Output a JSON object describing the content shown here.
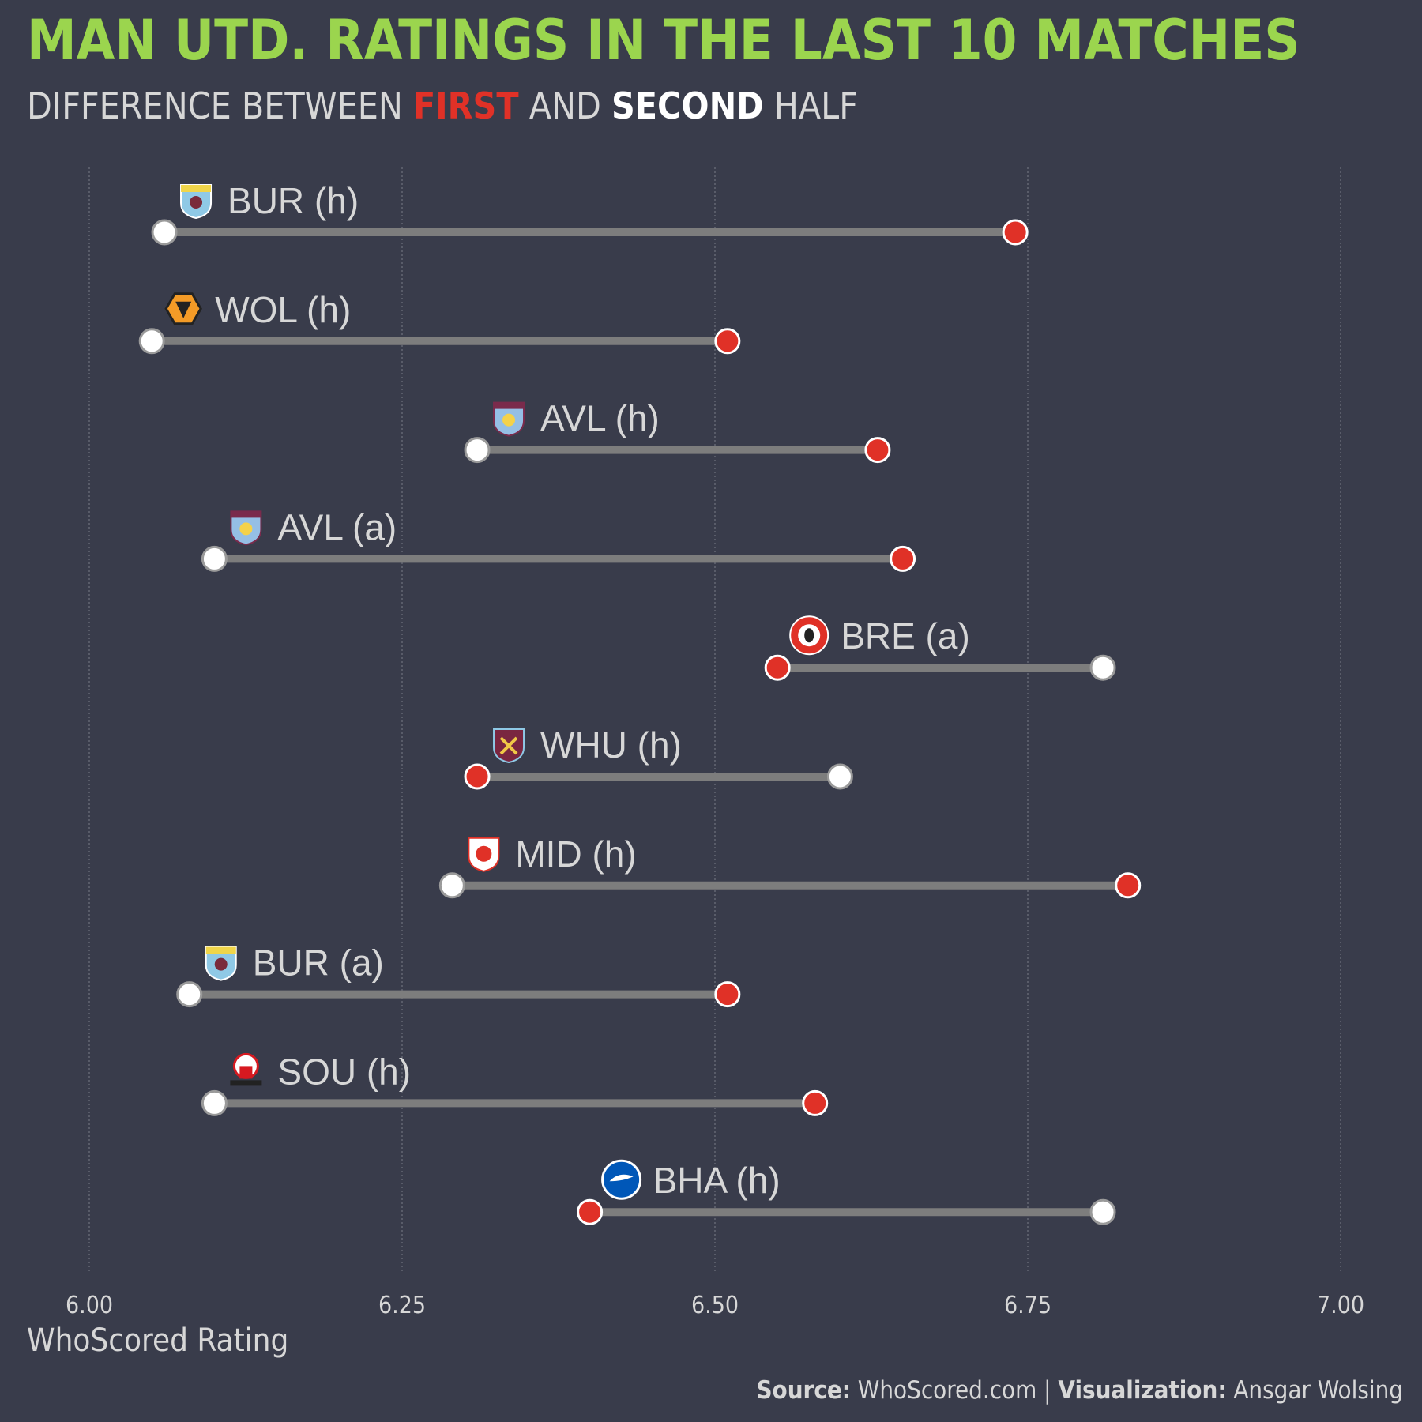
{
  "title": "MAN UTD. RATINGS IN THE LAST 10 MATCHES",
  "subtitle": {
    "part1": "DIFFERENCE BETWEEN ",
    "first": "FIRST",
    "part2": " AND ",
    "second": "SECOND",
    "part3": " HALF"
  },
  "colors": {
    "background": "#393c4b",
    "title": "#9bd54e",
    "first_half": "#e03127",
    "second_half": "#ffffff",
    "connector": "#7d7d7d",
    "text": "#d7d7d7"
  },
  "source": {
    "source_label": "Source:",
    "source_value": " WhoScored.com | ",
    "viz_label": "Visualization:",
    "viz_value": " Ansgar Wolsing"
  },
  "chart_data": {
    "type": "dumbbell",
    "xlabel": "WhoScored Rating",
    "xlim": [
      6.0,
      7.0
    ],
    "xticks": [
      "6.00",
      "6.25",
      "6.50",
      "6.75",
      "7.00"
    ],
    "xtick_values": [
      6.0,
      6.25,
      6.5,
      6.75,
      7.0
    ],
    "grid": true,
    "matches": [
      {
        "label": "BUR (h)",
        "icon": "burnley-crest-icon",
        "first": 6.74,
        "second": 6.06
      },
      {
        "label": "WOL (h)",
        "icon": "wolves-crest-icon",
        "first": 6.51,
        "second": 6.05
      },
      {
        "label": "AVL (h)",
        "icon": "aston-villa-crest-icon",
        "first": 6.63,
        "second": 6.31
      },
      {
        "label": "AVL (a)",
        "icon": "aston-villa-crest-icon",
        "first": 6.65,
        "second": 6.1
      },
      {
        "label": "BRE (a)",
        "icon": "brentford-crest-icon",
        "first": 6.55,
        "second": 6.81
      },
      {
        "label": "WHU (h)",
        "icon": "west-ham-crest-icon",
        "first": 6.31,
        "second": 6.6
      },
      {
        "label": "MID (h)",
        "icon": "middlesbrough-crest-icon",
        "first": 6.83,
        "second": 6.29
      },
      {
        "label": "BUR (a)",
        "icon": "burnley-crest-icon",
        "first": 6.51,
        "second": 6.08
      },
      {
        "label": "SOU (h)",
        "icon": "southampton-crest-icon",
        "first": 6.58,
        "second": 6.1
      },
      {
        "label": "BHA (h)",
        "icon": "brighton-crest-icon",
        "first": 6.4,
        "second": 6.81
      }
    ]
  }
}
